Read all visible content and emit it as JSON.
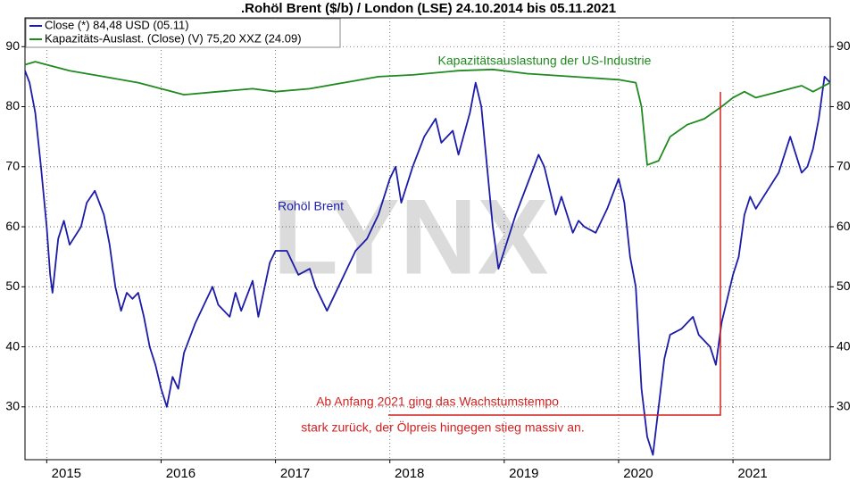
{
  "chart_data": {
    "type": "line",
    "title": ".Rohöl Brent ($/b) / London (LSE) 24.10.2014 bis 05.11.2021",
    "watermark": "LYNX",
    "annotations": [
      "Rohöl Brent",
      "Kapazitätsauslastung der US-Industrie",
      "Ab Anfang 2021 ging das Wachstumstempo",
      "stark zurück, der Ölpreis hingegen stieg massiv an."
    ],
    "xlim": [
      2014.81,
      2021.85
    ],
    "xticks": [
      2015,
      2016,
      2017,
      2018,
      2019,
      2020,
      2021
    ],
    "ylim": [
      21.2,
      94.8
    ],
    "yticks": [
      30,
      40,
      50,
      60,
      70,
      80,
      90
    ],
    "grid": true,
    "legend": "top-left",
    "series": [
      {
        "name": "Close (*) 84,48 USD (05.11)",
        "color": "#1c1ca8",
        "x": [
          2014.81,
          2014.85,
          2014.9,
          2014.95,
          2015.0,
          2015.03,
          2015.05,
          2015.1,
          2015.15,
          2015.2,
          2015.3,
          2015.35,
          2015.42,
          2015.5,
          2015.55,
          2015.6,
          2015.65,
          2015.7,
          2015.75,
          2015.8,
          2015.85,
          2015.9,
          2015.95,
          2016.0,
          2016.05,
          2016.1,
          2016.15,
          2016.2,
          2016.3,
          2016.4,
          2016.45,
          2016.5,
          2016.6,
          2016.65,
          2016.7,
          2016.8,
          2016.85,
          2016.95,
          2017.0,
          2017.1,
          2017.2,
          2017.3,
          2017.35,
          2017.45,
          2017.5,
          2017.6,
          2017.7,
          2017.8,
          2017.9,
          2018.0,
          2018.05,
          2018.1,
          2018.2,
          2018.3,
          2018.4,
          2018.45,
          2018.55,
          2018.6,
          2018.7,
          2018.75,
          2018.8,
          2018.85,
          2018.9,
          2018.95,
          2019.0,
          2019.1,
          2019.2,
          2019.3,
          2019.35,
          2019.45,
          2019.5,
          2019.6,
          2019.65,
          2019.7,
          2019.8,
          2019.9,
          2020.0,
          2020.05,
          2020.1,
          2020.15,
          2020.2,
          2020.25,
          2020.3,
          2020.35,
          2020.4,
          2020.45,
          2020.55,
          2020.65,
          2020.7,
          2020.8,
          2020.85,
          2020.9,
          2020.95,
          2021.0,
          2021.05,
          2021.1,
          2021.15,
          2021.2,
          2021.3,
          2021.4,
          2021.5,
          2021.55,
          2021.6,
          2021.65,
          2021.7,
          2021.75,
          2021.8,
          2021.85
        ],
        "values": [
          86,
          84,
          79,
          70,
          60,
          52,
          49,
          58,
          61,
          57,
          60,
          64,
          66,
          62,
          57,
          50,
          46,
          49,
          48,
          49,
          45,
          40,
          37,
          33,
          30,
          35,
          33,
          39,
          44,
          48,
          50,
          47,
          45,
          49,
          46,
          51,
          45,
          54,
          56,
          56,
          52,
          53,
          50,
          46,
          48,
          52,
          56,
          58,
          62,
          68,
          70,
          64,
          70,
          75,
          78,
          74,
          76,
          72,
          79,
          84,
          80,
          70,
          60,
          53,
          56,
          62,
          67,
          72,
          70,
          62,
          65,
          59,
          61,
          60,
          59,
          63,
          68,
          64,
          55,
          50,
          33,
          25,
          22,
          30,
          38,
          42,
          43,
          45,
          42,
          40,
          37,
          44,
          48,
          52,
          55,
          62,
          65,
          63,
          66,
          69,
          75,
          72,
          69,
          70,
          73,
          78,
          85,
          84
        ]
      },
      {
        "name": "Kapazitäts-Auslast. (Close) (V) 75,20 XXZ (24.09)",
        "color": "#1f8a1f",
        "x": [
          2014.81,
          2014.9,
          2015.0,
          2015.2,
          2015.5,
          2015.8,
          2016.0,
          2016.2,
          2016.5,
          2016.8,
          2017.0,
          2017.3,
          2017.6,
          2017.9,
          2018.2,
          2018.6,
          2018.9,
          2019.2,
          2019.6,
          2020.0,
          2020.15,
          2020.2,
          2020.25,
          2020.35,
          2020.45,
          2020.6,
          2020.75,
          2020.9,
          2021.0,
          2021.1,
          2021.2,
          2021.4,
          2021.6,
          2021.7,
          2021.85
        ],
        "values": [
          87,
          87.5,
          87,
          86,
          85,
          84,
          83,
          82,
          82.5,
          83,
          82.5,
          83,
          84,
          85,
          85.3,
          86,
          86.2,
          85.5,
          85,
          84.5,
          84,
          80,
          70.3,
          71,
          75,
          77,
          78,
          80,
          81.5,
          82.5,
          81.5,
          82.5,
          83.5,
          82.5,
          84
        ]
      }
    ]
  }
}
